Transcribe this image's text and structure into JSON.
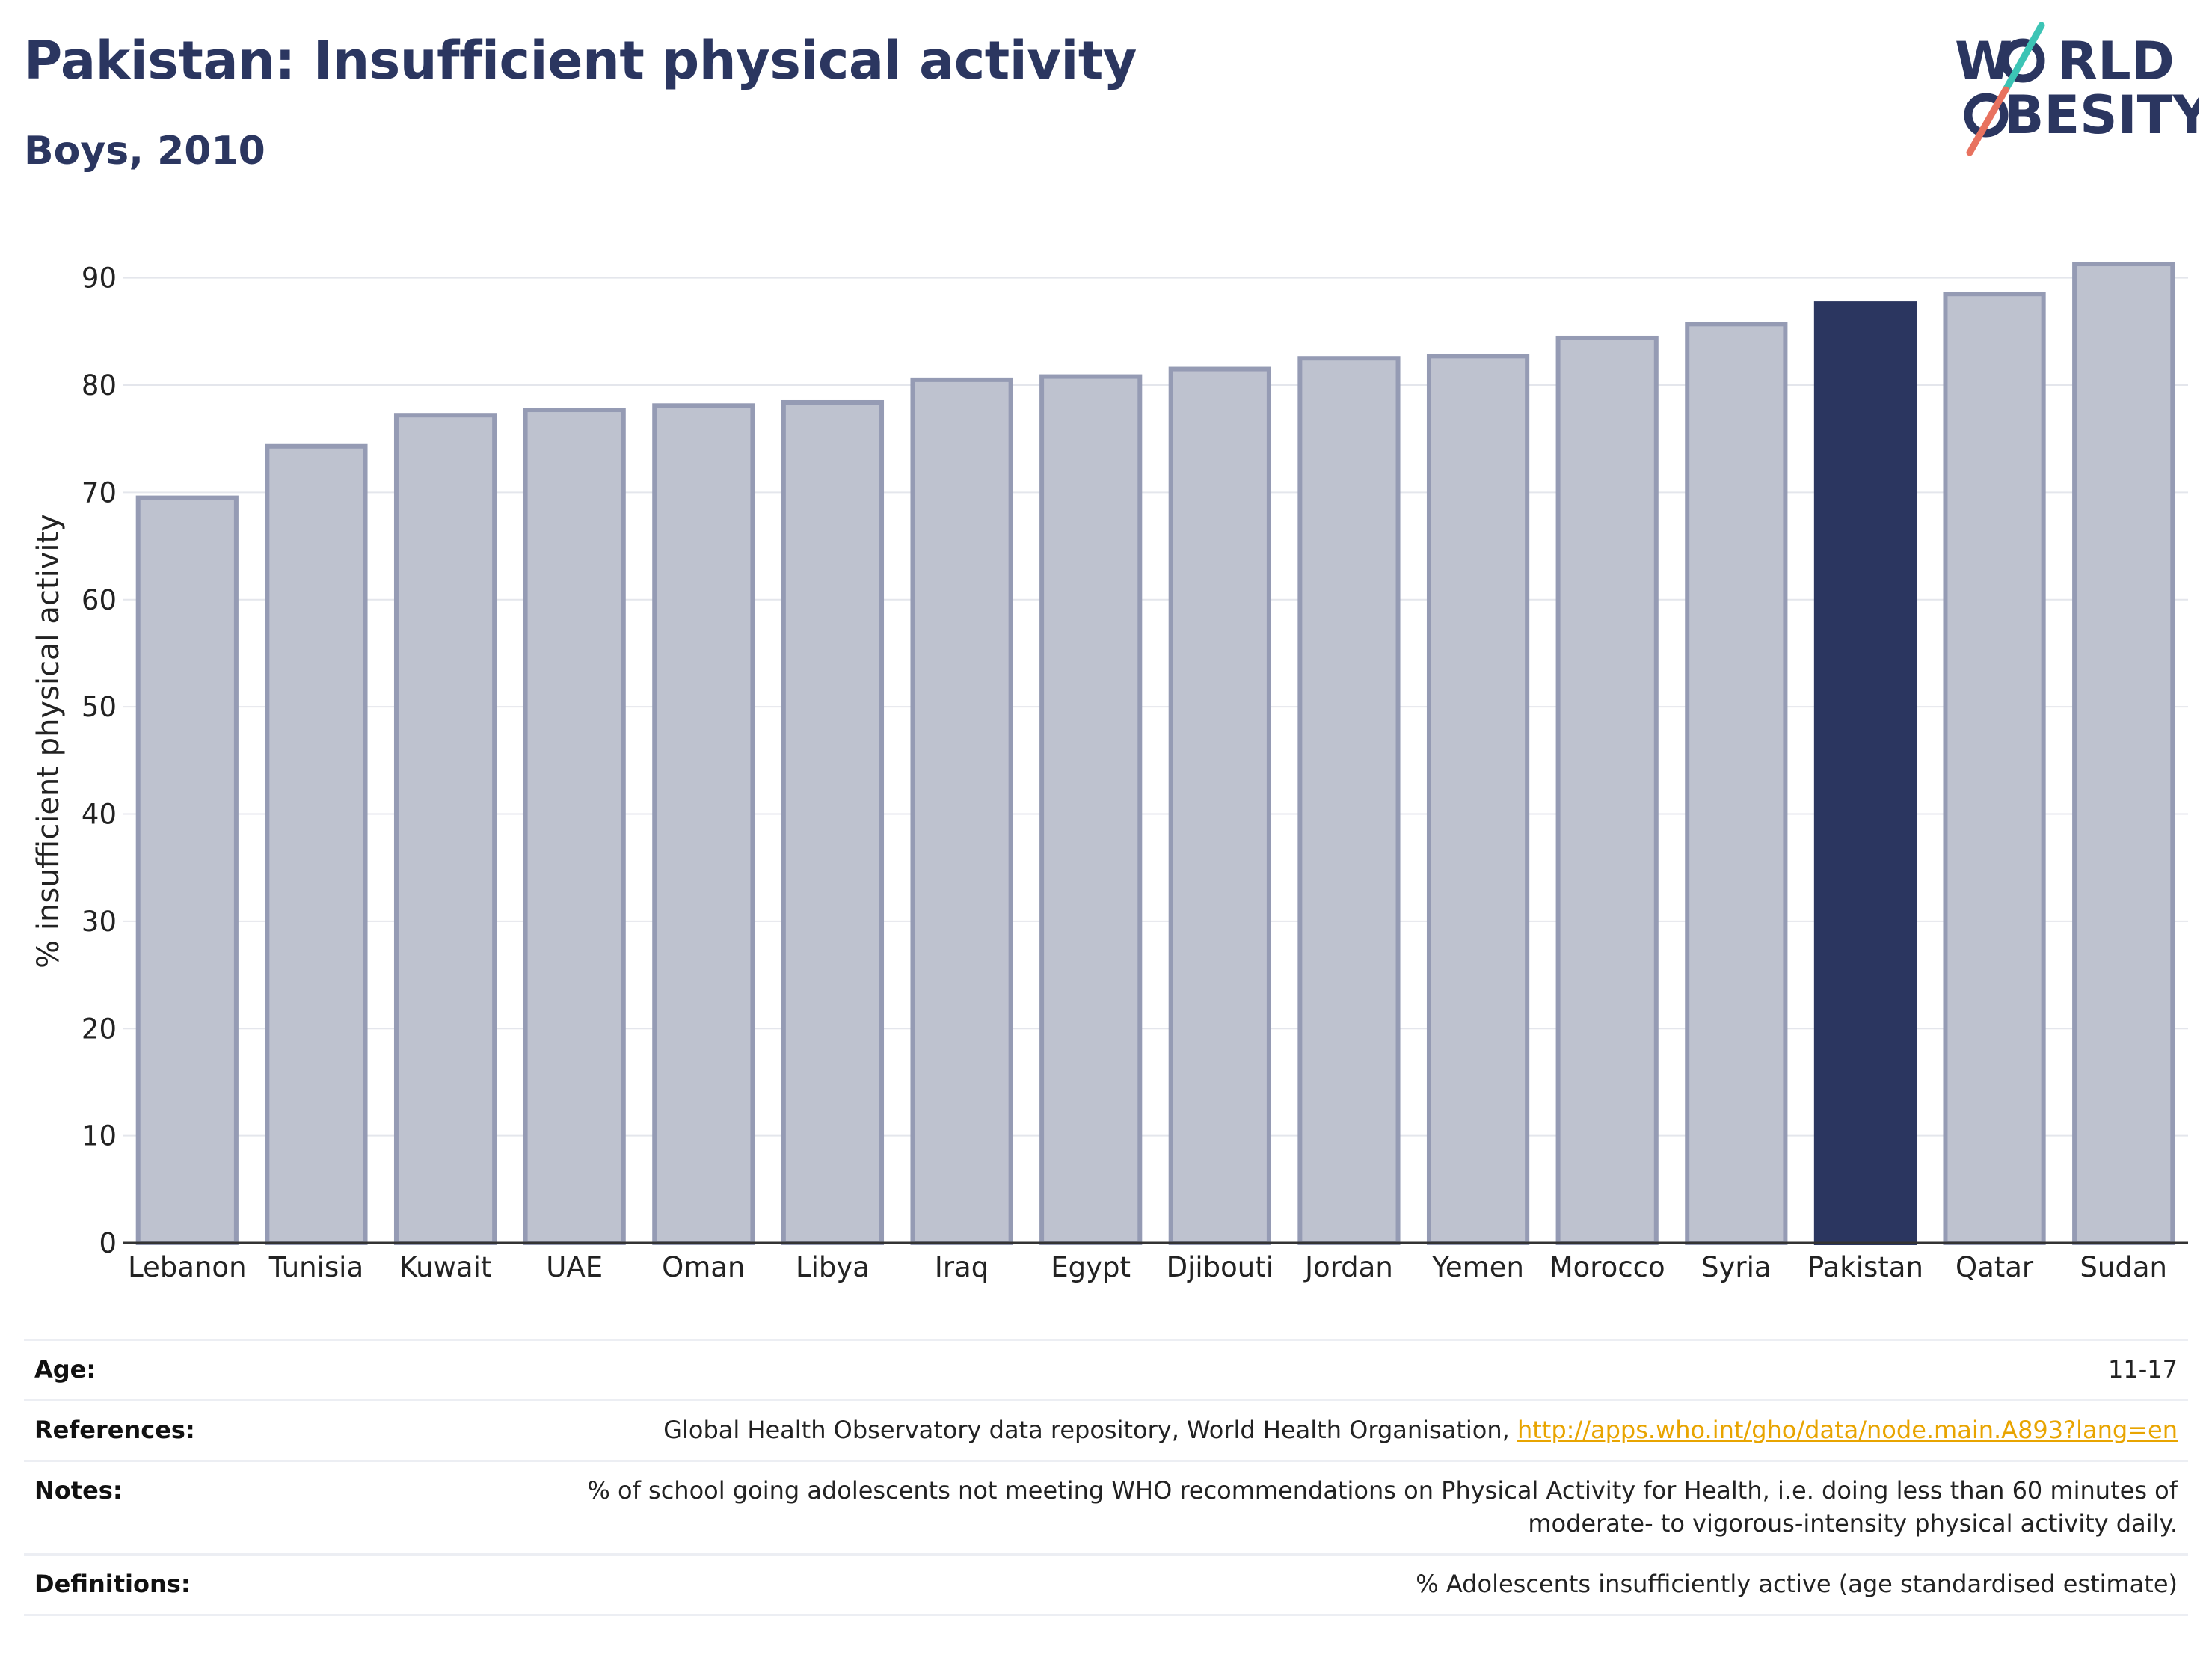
{
  "header": {
    "title": "Pakistan: Insufficient physical activity",
    "subtitle": "Boys, 2010"
  },
  "logo": {
    "line1": "W",
    "line1_rest": "RLD",
    "line2": "BESITY",
    "name": "world-obesity-logo"
  },
  "colors": {
    "title": "#2b3660",
    "bar_default": "#bec2cf",
    "bar_outline": "#959bb4",
    "bar_highlight": "#2b3660",
    "link": "#e8a400",
    "logo_teal": "#3cc4b5",
    "logo_coral": "#e8725f"
  },
  "chart_data": {
    "type": "bar",
    "categories": [
      "Lebanon",
      "Tunisia",
      "Kuwait",
      "UAE",
      "Oman",
      "Libya",
      "Iraq",
      "Egypt",
      "Djibouti",
      "Jordan",
      "Yemen",
      "Morocco",
      "Syria",
      "Pakistan",
      "Qatar",
      "Sudan"
    ],
    "values": [
      69.5,
      74.3,
      77.2,
      77.7,
      78.1,
      78.4,
      80.5,
      80.8,
      81.5,
      82.5,
      82.7,
      84.4,
      85.7,
      87.6,
      88.5,
      91.3
    ],
    "highlight": "Pakistan",
    "ylabel": "% insufficient physical activity",
    "xlabel": "",
    "ylim": [
      0,
      95
    ],
    "yticks": [
      0,
      10,
      20,
      30,
      40,
      50,
      60,
      70,
      80,
      90
    ],
    "grid": true
  },
  "info": {
    "age_label": "Age:",
    "age_value": "11-17",
    "references_label": "References:",
    "references_text": "Global Health Observatory data repository, World Health Organisation, ",
    "references_link": "http://apps.who.int/gho/data/node.main.A893?lang=en",
    "notes_label": "Notes:",
    "notes_line1": "% of school going adolescents not meeting WHO recommendations on Physical Activity for Health, i.e. doing less than 60 minutes of",
    "notes_line2": "moderate- to vigorous-intensity physical activity daily.",
    "definitions_label": "Definitions:",
    "definitions_value": "% Adolescents insufficiently active (age standardised estimate)"
  }
}
